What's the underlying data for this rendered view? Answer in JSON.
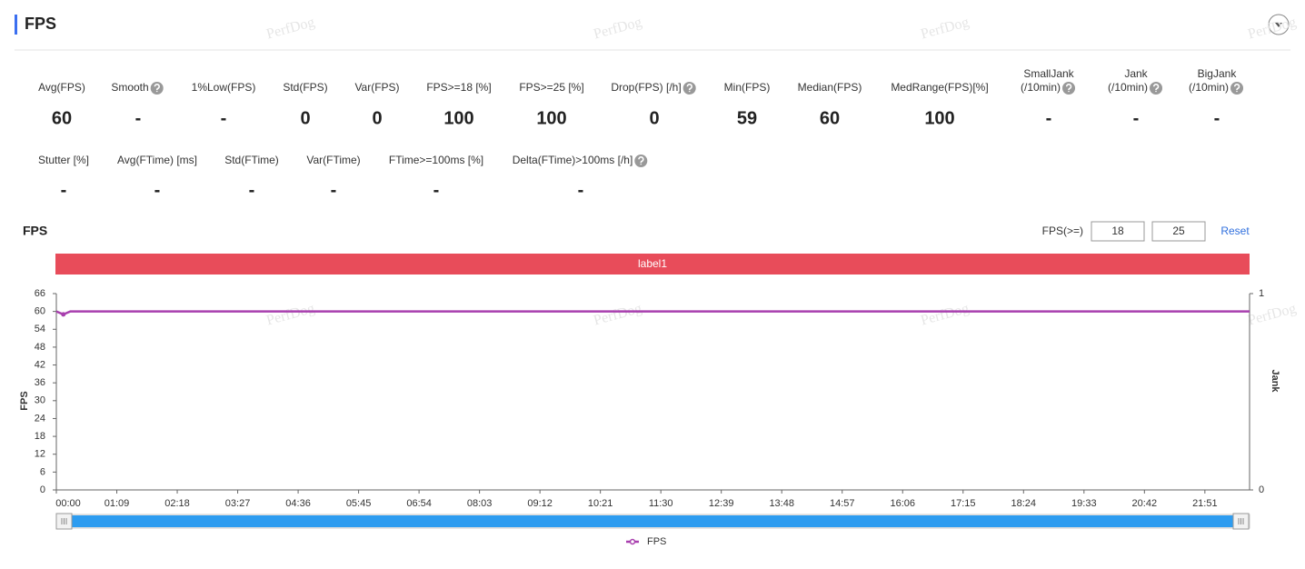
{
  "header": {
    "title": "FPS"
  },
  "watermark": "PerfDog",
  "metrics": [
    [
      {
        "label": [
          "Avg(FPS)"
        ],
        "value": 60
      },
      {
        "label": [
          "Smooth"
        ],
        "value": "-",
        "help": true
      },
      {
        "label": [
          "1%Low(FPS)"
        ],
        "value": "-"
      },
      {
        "label": [
          "Std(FPS)"
        ],
        "value": 0
      },
      {
        "label": [
          "Var(FPS)"
        ],
        "value": 0
      },
      {
        "label": [
          "FPS>=18 [%]"
        ],
        "value": 100
      },
      {
        "label": [
          "FPS>=25 [%]"
        ],
        "value": 100
      },
      {
        "label": [
          "Drop(FPS) [/h]"
        ],
        "value": 0,
        "help": true
      },
      {
        "label": [
          "Min(FPS)"
        ],
        "value": 59
      },
      {
        "label": [
          "Median(FPS)"
        ],
        "value": 60
      },
      {
        "label": [
          "MedRange(FPS)[%]"
        ],
        "value": 100
      },
      {
        "label": [
          "SmallJank",
          "(/10min)"
        ],
        "value": "-",
        "help": true
      },
      {
        "label": [
          "Jank",
          "(/10min)"
        ],
        "value": "-",
        "help": true
      },
      {
        "label": [
          "BigJank",
          "(/10min)"
        ],
        "value": "-",
        "help": true
      }
    ],
    [
      {
        "label": [
          "Stutter [%]"
        ],
        "value": "-"
      },
      {
        "label": [
          "Avg(FTime) [ms]"
        ],
        "value": "-"
      },
      {
        "label": [
          "Std(FTime)"
        ],
        "value": "-"
      },
      {
        "label": [
          "Var(FTime)"
        ],
        "value": "-"
      },
      {
        "label": [
          "FTime>=100ms [%]"
        ],
        "value": "-"
      },
      {
        "label": [
          "Delta(FTime)>100ms [/h]"
        ],
        "value": "-",
        "help": true
      }
    ]
  ],
  "controls": {
    "label": "FPS(>=)",
    "thresholds": [
      18,
      25
    ],
    "reset": "Reset"
  },
  "chart_data": {
    "type": "line",
    "title": "FPS",
    "band_label": "label1",
    "y_label": "FPS",
    "y2_label": "Jank",
    "xlim": [
      0,
      1362
    ],
    "xticks": [
      {
        "value": 0,
        "label": "00:00"
      },
      {
        "value": 69,
        "label": "01:09"
      },
      {
        "value": 138,
        "label": "02:18"
      },
      {
        "value": 207,
        "label": "03:27"
      },
      {
        "value": 276,
        "label": "04:36"
      },
      {
        "value": 345,
        "label": "05:45"
      },
      {
        "value": 414,
        "label": "06:54"
      },
      {
        "value": 483,
        "label": "08:03"
      },
      {
        "value": 552,
        "label": "09:12"
      },
      {
        "value": 621,
        "label": "10:21"
      },
      {
        "value": 690,
        "label": "11:30"
      },
      {
        "value": 759,
        "label": "12:39"
      },
      {
        "value": 828,
        "label": "13:48"
      },
      {
        "value": 897,
        "label": "14:57"
      },
      {
        "value": 966,
        "label": "16:06"
      },
      {
        "value": 1035,
        "label": "17:15"
      },
      {
        "value": 1104,
        "label": "18:24"
      },
      {
        "value": 1173,
        "label": "19:33"
      },
      {
        "value": 1242,
        "label": "20:42"
      },
      {
        "value": 1311,
        "label": "21:51"
      }
    ],
    "ylim": [
      0,
      66
    ],
    "yticks": [
      0,
      6,
      12,
      18,
      24,
      30,
      36,
      42,
      48,
      54,
      60,
      66
    ],
    "y2lim": [
      0,
      1
    ],
    "y2ticks": [
      0,
      1
    ],
    "series": [
      {
        "name": "FPS",
        "color": "#a83fae",
        "x": [
          0,
          8,
          16,
          1362
        ],
        "values": [
          60,
          59,
          60,
          60
        ]
      }
    ]
  }
}
